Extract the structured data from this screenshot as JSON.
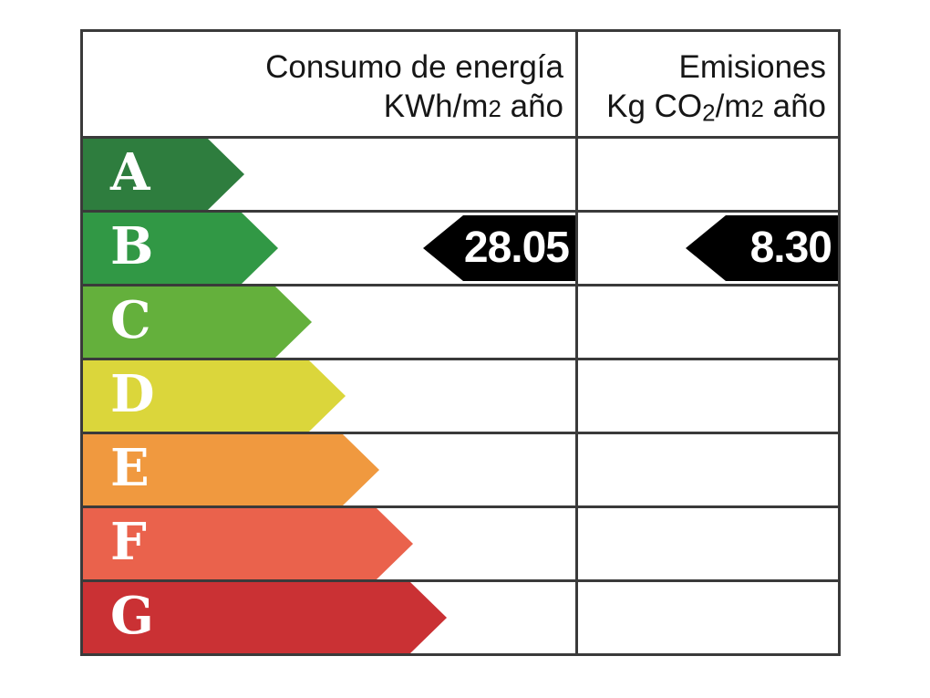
{
  "header": {
    "consumption": {
      "line1": "Consumo de energía",
      "unit_prefix": "KWh/m",
      "unit_sup": "2",
      "unit_suffix": " año"
    },
    "emissions": {
      "line1": "Emisiones",
      "unit_prefix": "Kg CO",
      "unit_sub": "2",
      "unit_mid": "/m",
      "unit_sup": "2",
      "unit_suffix": " año"
    }
  },
  "ratings": [
    {
      "letter": "A",
      "color": "#2e7d3e",
      "arrow_width": 177
    },
    {
      "letter": "B",
      "color": "#319845",
      "arrow_width": 214
    },
    {
      "letter": "C",
      "color": "#64b03c",
      "arrow_width": 251
    },
    {
      "letter": "D",
      "color": "#dbd63b",
      "arrow_width": 288
    },
    {
      "letter": "E",
      "color": "#f0993f",
      "arrow_width": 325
    },
    {
      "letter": "F",
      "color": "#ea624c",
      "arrow_width": 362
    },
    {
      "letter": "G",
      "color": "#ca3134",
      "arrow_width": 399
    }
  ],
  "values": {
    "rating_row": "B",
    "consumption": "28.05",
    "emissions": "8.30",
    "arrow_color": "#000000",
    "text_color": "#ffffff"
  },
  "colors": {
    "border": "#3a3a3a",
    "background": "#ffffff"
  },
  "chart_data": {
    "type": "bar",
    "description": "Spanish energy efficiency certificate rating scale",
    "categories": [
      "A",
      "B",
      "C",
      "D",
      "E",
      "F",
      "G"
    ],
    "columns": [
      "Consumo de energía KWh/m2 año",
      "Emisiones Kg CO2/m2 año"
    ],
    "current_rating": "B",
    "consumption_kwh_m2_year": 28.05,
    "emissions_kg_co2_m2_year": 8.3,
    "band_colors": [
      "#2e7d3e",
      "#319845",
      "#64b03c",
      "#dbd63b",
      "#f0993f",
      "#ea624c",
      "#ca3134"
    ],
    "legend_position": "none",
    "grid": true
  }
}
